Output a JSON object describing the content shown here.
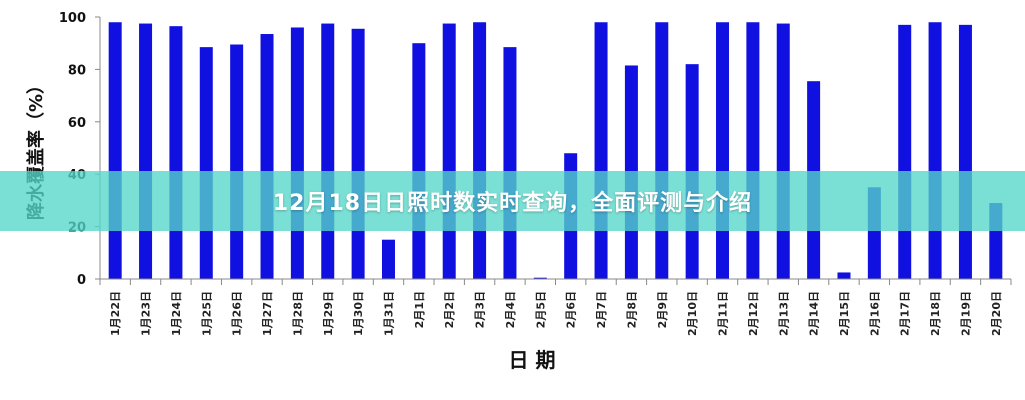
{
  "banner": {
    "title": "12月18日日照时数实时查询，全面评测与介绍"
  },
  "chart_data": {
    "type": "bar",
    "title": "",
    "xlabel": "日 期",
    "ylabel": "降水覆盖率（%）",
    "ylim": [
      0,
      100
    ],
    "yticks": [
      0,
      20,
      40,
      60,
      80,
      100
    ],
    "grid": false,
    "bar_color": "#1010e0",
    "categories": [
      "1月22日",
      "1月23日",
      "1月24日",
      "1月25日",
      "1月26日",
      "1月27日",
      "1月28日",
      "1月29日",
      "1月30日",
      "1月31日",
      "2月1日",
      "2月2日",
      "2月3日",
      "2月4日",
      "2月5日",
      "2月6日",
      "2月7日",
      "2月8日",
      "2月9日",
      "2月10日",
      "2月11日",
      "2月12日",
      "2月13日",
      "2月14日",
      "2月15日",
      "2月16日",
      "2月17日",
      "2月18日",
      "2月19日",
      "2月20日"
    ],
    "values": [
      98,
      97.5,
      96.5,
      88.5,
      89.5,
      93.5,
      96,
      97.5,
      95.5,
      15,
      90,
      97.5,
      98,
      88.5,
      0.5,
      48,
      98,
      81.5,
      98,
      82,
      98,
      98,
      97.5,
      75.5,
      2.5,
      35,
      97,
      98,
      97,
      29
    ]
  }
}
